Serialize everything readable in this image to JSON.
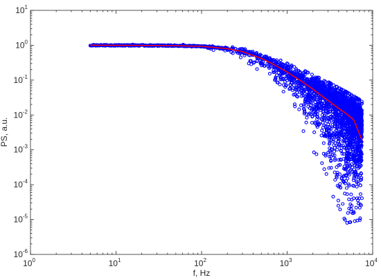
{
  "chart_data": {
    "type": "scatter",
    "title": "",
    "xlabel": "f, Hz",
    "ylabel": "PS, a.u.",
    "x_scale": "log",
    "y_scale": "log",
    "xlim": [
      1,
      10000
    ],
    "ylim": [
      1e-06,
      10
    ],
    "grid": false,
    "legend": "none",
    "x_ticks": [
      {
        "value": 1,
        "base": "10",
        "exp": "0"
      },
      {
        "value": 10,
        "base": "10",
        "exp": "1"
      },
      {
        "value": 100,
        "base": "10",
        "exp": "2"
      },
      {
        "value": 1000,
        "base": "10",
        "exp": "3"
      },
      {
        "value": 10000,
        "base": "10",
        "exp": "4"
      }
    ],
    "y_ticks": [
      {
        "value": 1e-06,
        "base": "10",
        "exp": "-6"
      },
      {
        "value": 1e-05,
        "base": "10",
        "exp": "-5"
      },
      {
        "value": 0.0001,
        "base": "10",
        "exp": "-4"
      },
      {
        "value": 0.001,
        "base": "10",
        "exp": "-3"
      },
      {
        "value": 0.01,
        "base": "10",
        "exp": "-2"
      },
      {
        "value": 0.1,
        "base": "10",
        "exp": "-1"
      },
      {
        "value": 1,
        "base": "10",
        "exp": "0"
      },
      {
        "value": 10,
        "base": "10",
        "exp": "1"
      }
    ],
    "scatter_series": {
      "marker": "circle-open",
      "color": "#0000ff",
      "x_range": [
        5,
        7500
      ],
      "median": [
        [
          5,
          1.0
        ],
        [
          20,
          0.99
        ],
        [
          50,
          0.97
        ],
        [
          100,
          0.93
        ],
        [
          200,
          0.8
        ],
        [
          300,
          0.66
        ],
        [
          500,
          0.42
        ],
        [
          700,
          0.28
        ],
        [
          1000,
          0.17
        ],
        [
          1500,
          0.09
        ],
        [
          2000,
          0.055
        ],
        [
          3000,
          0.028
        ],
        [
          4000,
          0.018
        ],
        [
          5000,
          0.011
        ],
        [
          6000,
          0.0075
        ],
        [
          7500,
          0.0045
        ]
      ],
      "lower_envelope": [
        [
          5,
          0.97
        ],
        [
          50,
          0.92
        ],
        [
          100,
          0.85
        ],
        [
          200,
          0.6
        ],
        [
          300,
          0.4
        ],
        [
          500,
          0.17
        ],
        [
          700,
          0.07
        ],
        [
          1000,
          0.02
        ],
        [
          1500,
          0.004
        ],
        [
          2000,
          0.001
        ],
        [
          3000,
          0.0001
        ],
        [
          4000,
          2e-05
        ],
        [
          5000,
          8e-06
        ],
        [
          7500,
          1e-05
        ]
      ],
      "upper_envelope": [
        [
          5,
          1.05
        ],
        [
          50,
          1.05
        ],
        [
          100,
          1.02
        ],
        [
          200,
          0.95
        ],
        [
          300,
          0.85
        ],
        [
          500,
          0.6
        ],
        [
          700,
          0.45
        ],
        [
          1000,
          0.3
        ],
        [
          1500,
          0.2
        ],
        [
          2000,
          0.14
        ],
        [
          3000,
          0.09
        ],
        [
          4000,
          0.06
        ],
        [
          5000,
          0.045
        ],
        [
          7500,
          0.025
        ]
      ]
    },
    "fit_line": {
      "color": "#ff0000",
      "points": [
        [
          5,
          1.0
        ],
        [
          20,
          0.99
        ],
        [
          50,
          0.97
        ],
        [
          100,
          0.93
        ],
        [
          200,
          0.8
        ],
        [
          300,
          0.66
        ],
        [
          500,
          0.42
        ],
        [
          700,
          0.28
        ],
        [
          1000,
          0.17
        ],
        [
          1500,
          0.09
        ],
        [
          2000,
          0.055
        ],
        [
          3000,
          0.026
        ],
        [
          4000,
          0.0155
        ],
        [
          5000,
          0.0105
        ],
        [
          6000,
          0.0073
        ],
        [
          7500,
          0.0019
        ]
      ]
    }
  }
}
